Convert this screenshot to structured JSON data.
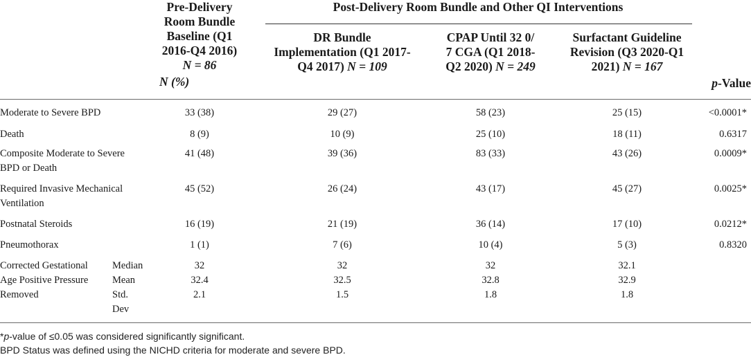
{
  "header": {
    "baseline": {
      "lines": [
        "Pre-Delivery",
        "Room Bundle",
        "Baseline (Q1",
        "2016-Q4 2016)"
      ],
      "n": "N = 86",
      "unit": "N (%)"
    },
    "group_title": "Post-Delivery Room Bundle and Other QI Interventions",
    "dr": {
      "lines": [
        "DR Bundle",
        "Implementation (Q1 2017-"
      ],
      "last": "Q4 2017) ",
      "n": "N = 109"
    },
    "cpap": {
      "lines": [
        "CPAP Until 32 0/",
        "7 CGA (Q1 2018-"
      ],
      "last": "Q2 2020) ",
      "n": "N = 249"
    },
    "surf": {
      "lines": [
        "Surfactant Guideline",
        "Revision (Q3 2020-Q1"
      ],
      "last": "2021) ",
      "n": "N = 167"
    },
    "pvalue": {
      "p": "p",
      "rest": "-Value"
    }
  },
  "rows": [
    {
      "label": [
        "Moderate to Severe BPD"
      ],
      "values": [
        "33 (38)",
        "29 (27)",
        "58 (23)",
        "25 (15)"
      ],
      "p": "<0.0001*"
    },
    {
      "label": [
        "Death"
      ],
      "values": [
        "8 (9)",
        "10 (9)",
        "25 (10)",
        "18 (11)"
      ],
      "p": "0.6317"
    },
    {
      "label": [
        "Composite Moderate to Severe",
        "BPD or Death"
      ],
      "values": [
        "41 (48)",
        "39 (36)",
        "83 (33)",
        "43 (26)"
      ],
      "p": "0.0009*"
    },
    {
      "label": [
        "Required Invasive Mechanical",
        "Ventilation"
      ],
      "values": [
        "45 (52)",
        "26 (24)",
        "43 (17)",
        "45 (27)"
      ],
      "p": "0.0025*"
    },
    {
      "label": [
        "Postnatal Steroids"
      ],
      "values": [
        "16 (19)",
        "21 (19)",
        "36 (14)",
        "17 (10)"
      ],
      "p": "0.0212*"
    },
    {
      "label": [
        "Pneumothorax"
      ],
      "values": [
        "1 (1)",
        "7 (6)",
        "10 (4)",
        "5 (3)"
      ],
      "p": "0.8320"
    }
  ],
  "cga": {
    "label": [
      "Corrected Gestational",
      "Age Positive Pressure",
      "Removed"
    ],
    "stats": [
      {
        "name": [
          "Median"
        ],
        "values": [
          "32",
          "32",
          "32",
          "32.1"
        ]
      },
      {
        "name": [
          "Mean"
        ],
        "values": [
          "32.4",
          "32.5",
          "32.8",
          "32.9"
        ]
      },
      {
        "name": [
          "Std.",
          "Dev"
        ],
        "values": [
          "2.1",
          "1.5",
          "1.8",
          "1.8"
        ]
      }
    ]
  },
  "footnotes": {
    "star": "*",
    "p": "p",
    "note1_rest": "-value of ≤0.05 was considered significantly significant.",
    "note2": "BPD Status was defined using the NICHD criteria for moderate and severe BPD."
  }
}
